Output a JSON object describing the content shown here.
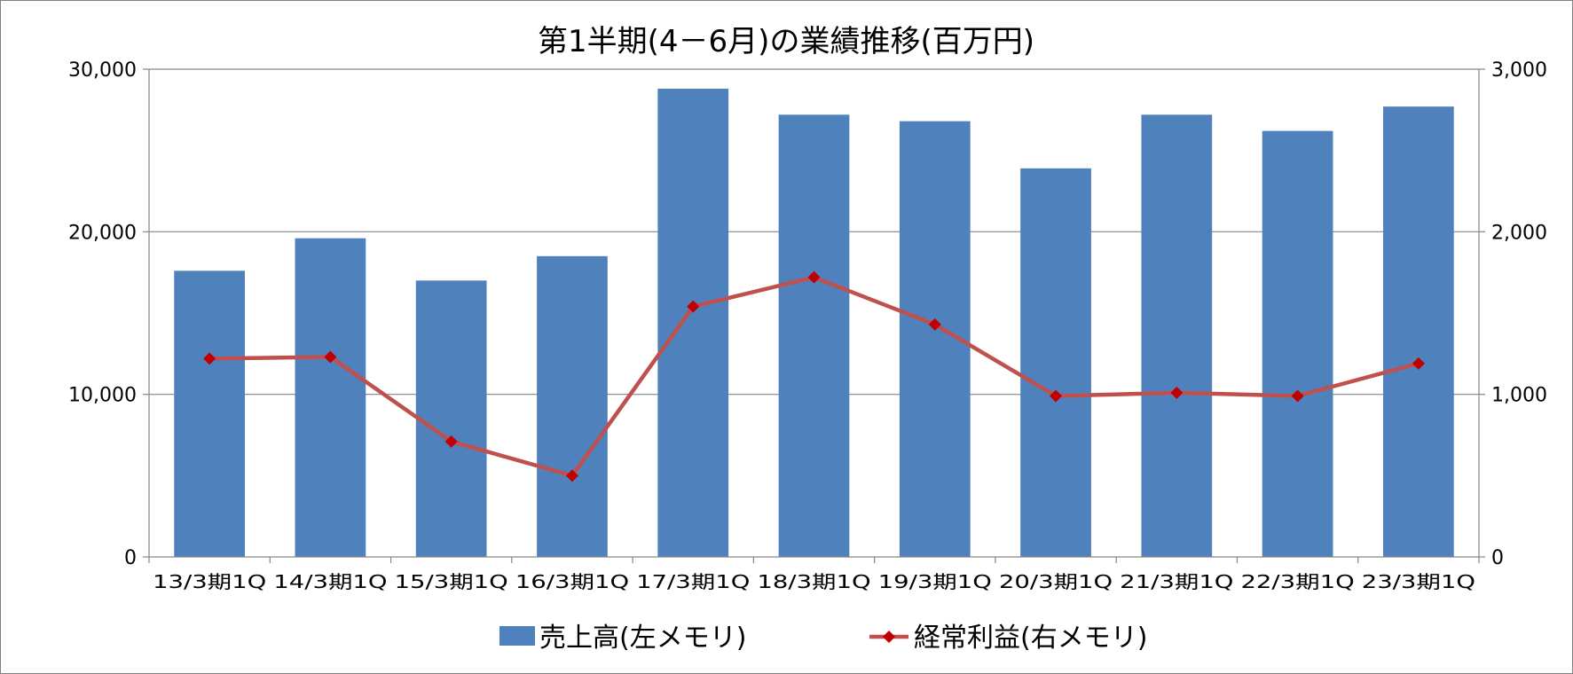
{
  "chart_data": {
    "type": "bar+line",
    "title": "第1半期(4－6月)の業績推移(百万円)",
    "categories": [
      "13/3期1Q",
      "14/3期1Q",
      "15/3期1Q",
      "16/3期1Q",
      "17/3期1Q",
      "18/3期1Q",
      "19/3期1Q",
      "20/3期1Q",
      "21/3期1Q",
      "22/3期1Q",
      "23/3期1Q"
    ],
    "series": [
      {
        "name": "売上高(左メモリ)",
        "kind": "bar",
        "axis": "left",
        "color": "#4F81BD",
        "values": [
          17600,
          19600,
          17000,
          18500,
          28800,
          27200,
          26800,
          23900,
          27200,
          26200,
          27700
        ]
      },
      {
        "name": "経常利益(右メモリ)",
        "kind": "line",
        "axis": "right",
        "color": "#C0504D",
        "marker_color": "#C00000",
        "values": [
          1220,
          1230,
          710,
          500,
          1540,
          1720,
          1430,
          990,
          1010,
          990,
          1190
        ]
      }
    ],
    "y_left": {
      "min": 0,
      "max": 30000,
      "ticks": [
        "0",
        "10,000",
        "20,000",
        "30,000"
      ],
      "tick_values": [
        0,
        10000,
        20000,
        30000
      ]
    },
    "y_right": {
      "min": 0,
      "max": 3000,
      "ticks": [
        "0",
        "1,000",
        "2,000",
        "3,000"
      ],
      "tick_values": [
        0,
        1000,
        2000,
        3000
      ]
    },
    "grid": true,
    "legend_position": "bottom"
  }
}
